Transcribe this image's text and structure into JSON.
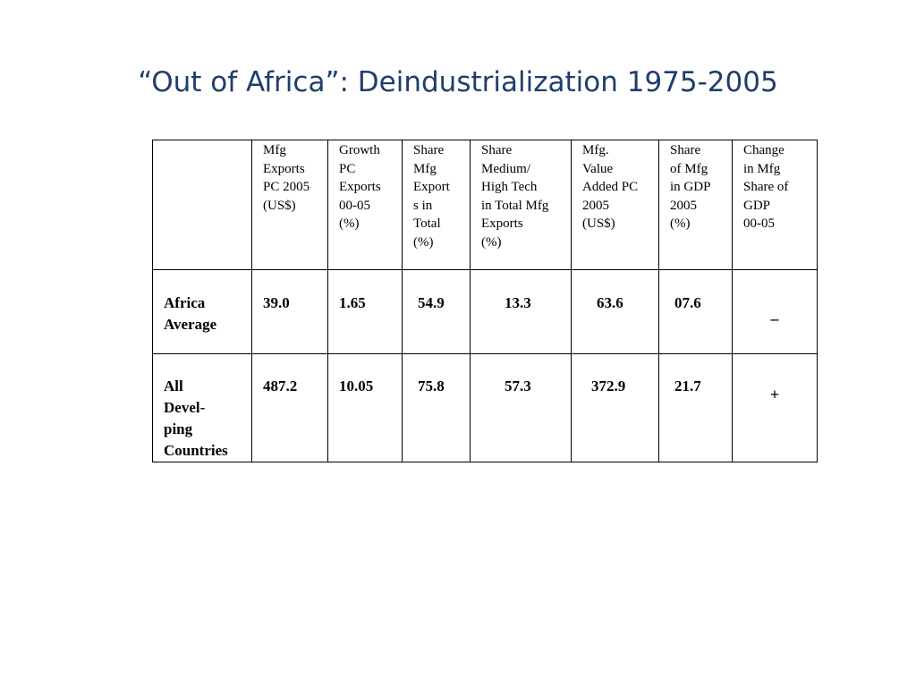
{
  "title": "“Out of Africa”: Deindustrialization 1975-2005",
  "table": {
    "corner": "",
    "headers": [
      "Mfg\nExports\nPC 2005\n(US$)",
      "Growth\nPC\nExports\n00-05\n (%)",
      "Share\nMfg\nExport\ns in\nTotal\n (%)",
      "Share\nMedium/\nHigh Tech\nin Total Mfg\nExports\n        (%)",
      "Mfg.\nValue\nAdded PC\n2005\n  (US$)",
      "Share\nof Mfg\nin GDP\n2005\n  (%)",
      "Change\nin Mfg\nShare of\nGDP\n00-05"
    ],
    "rows": [
      {
        "label": "Africa\nAverage",
        "values": [
          "39.0",
          "1.65",
          "54.9",
          "13.3",
          "63.6",
          "07.6",
          "_"
        ]
      },
      {
        "label": " All\nDevel-\nping\nCountries",
        "values": [
          "487.2",
          "10.05",
          "75.8",
          "57.3",
          "372.9",
          "21.7",
          "+"
        ]
      }
    ]
  }
}
